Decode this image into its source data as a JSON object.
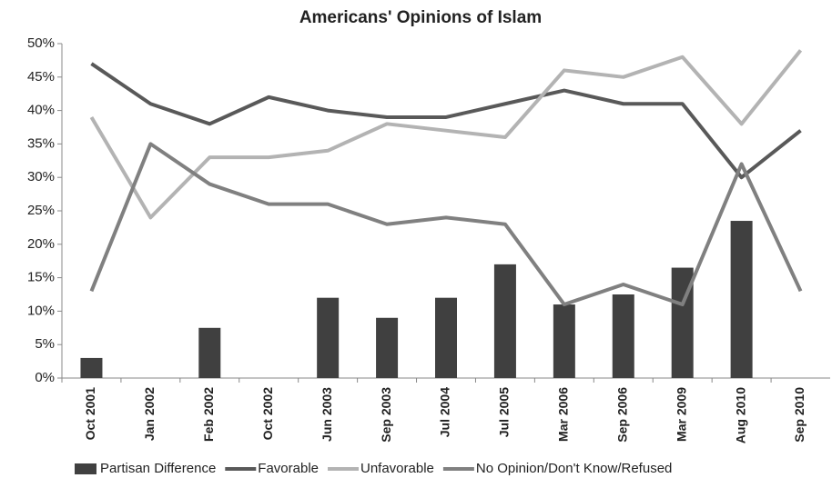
{
  "chart_data": {
    "type": "bar",
    "title": "Americans' Opinions of Islam",
    "categories": [
      "Oct 2001",
      "Jan 2002",
      "Feb 2002",
      "Oct 2002",
      "Jun 2003",
      "Sep 2003",
      "Jul 2004",
      "Jul 2005",
      "Mar 2006",
      "Sep 2006",
      "Mar 2009",
      "Aug 2010",
      "Sep 2010"
    ],
    "series": [
      {
        "name": "Partisan Difference",
        "type": "bar",
        "color": "#404040",
        "values": [
          3,
          null,
          7.5,
          null,
          12,
          9,
          12,
          17,
          11,
          12.5,
          16.5,
          23.5,
          null
        ]
      },
      {
        "name": "Favorable",
        "type": "line",
        "color": "#595959",
        "values": [
          47,
          41,
          38,
          42,
          40,
          39,
          39,
          41,
          43,
          41,
          41,
          30,
          37
        ]
      },
      {
        "name": "Unfavorable",
        "type": "line",
        "color": "#b3b3b3",
        "values": [
          39,
          24,
          33,
          33,
          34,
          38,
          37,
          36,
          46,
          45,
          48,
          38,
          49
        ]
      },
      {
        "name": "No Opinion/Don't Know/Refused",
        "type": "line",
        "color": "#808080",
        "values": [
          13,
          35,
          29,
          26,
          26,
          23,
          24,
          23,
          11,
          14,
          11,
          32,
          13
        ]
      }
    ],
    "ylim": [
      0,
      50
    ],
    "yticks": [
      {
        "value": 0,
        "label": "0%"
      },
      {
        "value": 5,
        "label": "5%"
      },
      {
        "value": 10,
        "label": "10%"
      },
      {
        "value": 15,
        "label": "15%"
      },
      {
        "value": 20,
        "label": "20%"
      },
      {
        "value": 25,
        "label": "25%"
      },
      {
        "value": 30,
        "label": "30%"
      },
      {
        "value": 35,
        "label": "35%"
      },
      {
        "value": 40,
        "label": "40%"
      },
      {
        "value": 45,
        "label": "45%"
      },
      {
        "value": 50,
        "label": "50%"
      }
    ],
    "grid": false,
    "legend": "bottom"
  }
}
